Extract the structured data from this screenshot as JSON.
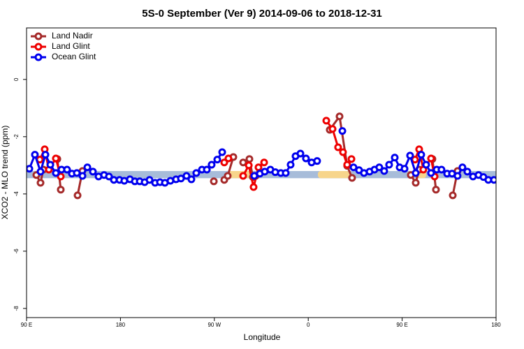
{
  "chart_data": {
    "type": "line",
    "title": "5S-0 September (Ver 9)   2014-09-06 to 2018-12-31",
    "x_label": "Longitude",
    "y_label": "XCO2 - MLO trend (ppm)",
    "xlim": [
      90,
      540
    ],
    "ylim": [
      -8.32,
      1.8
    ],
    "xticks": [
      {
        "value": 90,
        "label": "90 E"
      },
      {
        "value": 180,
        "label": "180"
      },
      {
        "value": 270,
        "label": "90 W"
      },
      {
        "value": 360,
        "label": "0"
      },
      {
        "value": 450,
        "label": "90 E"
      },
      {
        "value": 540,
        "label": "180"
      }
    ],
    "yticks": [
      0,
      -2,
      -4,
      -6,
      -8
    ],
    "grid": false,
    "legend": "top-left",
    "band": [
      -3.45,
      -3.2
    ],
    "band_color": "#a7bcd9",
    "band_highlights": [
      [
        282.2,
        305.6
      ],
      [
        369.2,
        399.4
      ],
      [
        463.0,
        473.0
      ]
    ],
    "highlight_color": "#f7d58b",
    "series": [
      {
        "name": "Land Nadir",
        "color": "#a52a2a",
        "x": [
          99.4,
          103.4,
          106.1,
          null,
          119.5,
          122.8,
          null,
          138.9,
          143.6,
          null,
          269.5,
          null,
          279.5,
          282.8,
          288.2,
          null,
          297.6,
          303.6,
          306.9,
          309.6,
          null,
          380.6,
          390.0,
          397.3,
          402.0,
          null,
          458.3,
          463.0,
          466.3,
          null,
          479.0,
          482.4,
          null,
          498.5,
          503.1
        ],
        "values": [
          -3.34,
          -3.61,
          -3.15,
          null,
          -2.78,
          -3.85,
          null,
          -4.05,
          -3.2,
          null,
          -3.56,
          null,
          -3.51,
          -3.37,
          -2.71,
          null,
          -2.9,
          -2.78,
          -3.41,
          -3.37,
          null,
          -1.76,
          -1.29,
          -3.02,
          -3.44,
          null,
          -3.34,
          -3.61,
          -3.15,
          null,
          -2.78,
          -3.85,
          null,
          -4.05,
          -3.2
        ]
      },
      {
        "name": "Land Glint",
        "color": "#ee0000",
        "x": [
          102.7,
          107.4,
          111.4,
          118.1,
          122.8,
          null,
          279.5,
          283.5,
          null,
          297.6,
          303.0,
          307.6,
          312.3,
          317.7,
          null,
          377.3,
          383.3,
          388.6,
          393.3,
          397.3,
          401.4,
          null,
          462.3,
          466.3,
          470.3,
          477.7,
          481.1
        ],
        "values": [
          -2.8,
          -2.44,
          -3.15,
          -2.76,
          -3.39,
          null,
          -2.9,
          -2.76,
          null,
          -3.37,
          -3.0,
          -3.76,
          -3.07,
          -2.9,
          null,
          -1.44,
          -1.73,
          -2.37,
          -2.54,
          -2.98,
          -2.78,
          null,
          -2.8,
          -2.44,
          -3.15,
          -2.76,
          -3.39
        ]
      },
      {
        "name": "Ocean Glint",
        "color": "#0000ee",
        "x": [
          92.7,
          98.0,
          103.4,
          108.1,
          112.8,
          118.1,
          123.5,
          128.8,
          133.5,
          138.2,
          143.6,
          148.3,
          153.6,
          159.0,
          164.3,
          169.0,
          173.7,
          179.1,
          183.7,
          189.1,
          193.8,
          198.5,
          203.2,
          207.9,
          213.2,
          217.9,
          222.6,
          227.9,
          233.3,
          238.0,
          243.3,
          248.0,
          252.7,
          258.1,
          262.8,
          267.4,
          272.8,
          277.5,
          null,
          308.3,
          313.6,
          318.3,
          323.7,
          328.4,
          333.7,
          338.4,
          343.1,
          347.8,
          352.5,
          357.8,
          363.2,
          368.5,
          null,
          392.7,
          null,
          403.4,
          408.7,
          413.4,
          418.8,
          423.5,
          428.1,
          432.8,
          437.5,
          442.9,
          447.6,
          452.3,
          457.6,
          463.0,
          468.3,
          473.0,
          477.7,
          483.1,
          487.7,
          493.1,
          497.8,
          503.1,
          507.8,
          512.5,
          517.9,
          523.2,
          527.9,
          532.6,
          538.0
        ],
        "values": [
          -3.12,
          -2.63,
          -3.22,
          -2.63,
          -2.98,
          -3.27,
          -3.15,
          -3.15,
          -3.29,
          -3.27,
          -3.37,
          -3.07,
          -3.22,
          -3.39,
          -3.34,
          -3.39,
          -3.51,
          -3.51,
          -3.54,
          -3.49,
          -3.56,
          -3.56,
          -3.59,
          -3.51,
          -3.61,
          -3.59,
          -3.61,
          -3.54,
          -3.49,
          -3.46,
          -3.37,
          -3.49,
          -3.27,
          -3.15,
          -3.15,
          -2.98,
          -2.8,
          -2.54,
          null,
          -3.37,
          -3.29,
          -3.22,
          -3.15,
          -3.24,
          -3.27,
          -3.27,
          -2.98,
          -2.68,
          -2.59,
          -2.76,
          -2.9,
          -2.85,
          null,
          -1.8,
          null,
          -3.07,
          -3.17,
          -3.27,
          -3.22,
          -3.15,
          -3.07,
          -3.2,
          -2.98,
          -2.73,
          -3.07,
          -3.12,
          -2.66,
          -3.27,
          -2.63,
          -2.98,
          -3.27,
          -3.15,
          -3.15,
          -3.29,
          -3.29,
          -3.37,
          -3.07,
          -3.22,
          -3.39,
          -3.34,
          -3.41,
          -3.51,
          -3.51
        ]
      }
    ]
  }
}
